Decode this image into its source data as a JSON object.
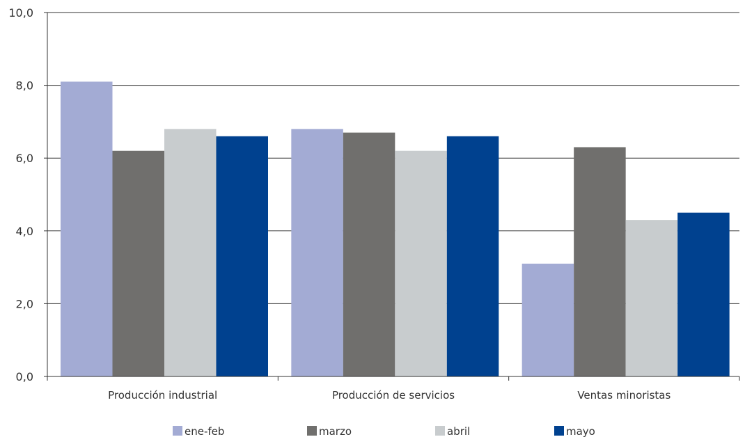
{
  "chart_data": {
    "type": "bar",
    "title": "",
    "xlabel": "",
    "ylabel": "",
    "ylim": [
      0,
      10
    ],
    "yticks": [
      "0,0",
      "2,0",
      "4,0",
      "6,0",
      "8,0",
      "10,0"
    ],
    "ytick_values": [
      0,
      2,
      4,
      6,
      8,
      10
    ],
    "grid": true,
    "legend_position": "bottom",
    "categories": [
      "Producción industrial",
      "Producción de servicios",
      "Ventas minoristas"
    ],
    "series": [
      {
        "name": "ene-feb",
        "color": "#a3abd4",
        "values": [
          8.1,
          6.8,
          3.1
        ]
      },
      {
        "name": "marzo",
        "color": "#706f6d",
        "values": [
          6.2,
          6.7,
          6.3
        ]
      },
      {
        "name": "abril",
        "color": "#c8ccce",
        "values": [
          6.8,
          6.2,
          4.3
        ]
      },
      {
        "name": "mayo",
        "color": "#00418f",
        "values": [
          6.6,
          6.6,
          4.5
        ]
      }
    ]
  }
}
